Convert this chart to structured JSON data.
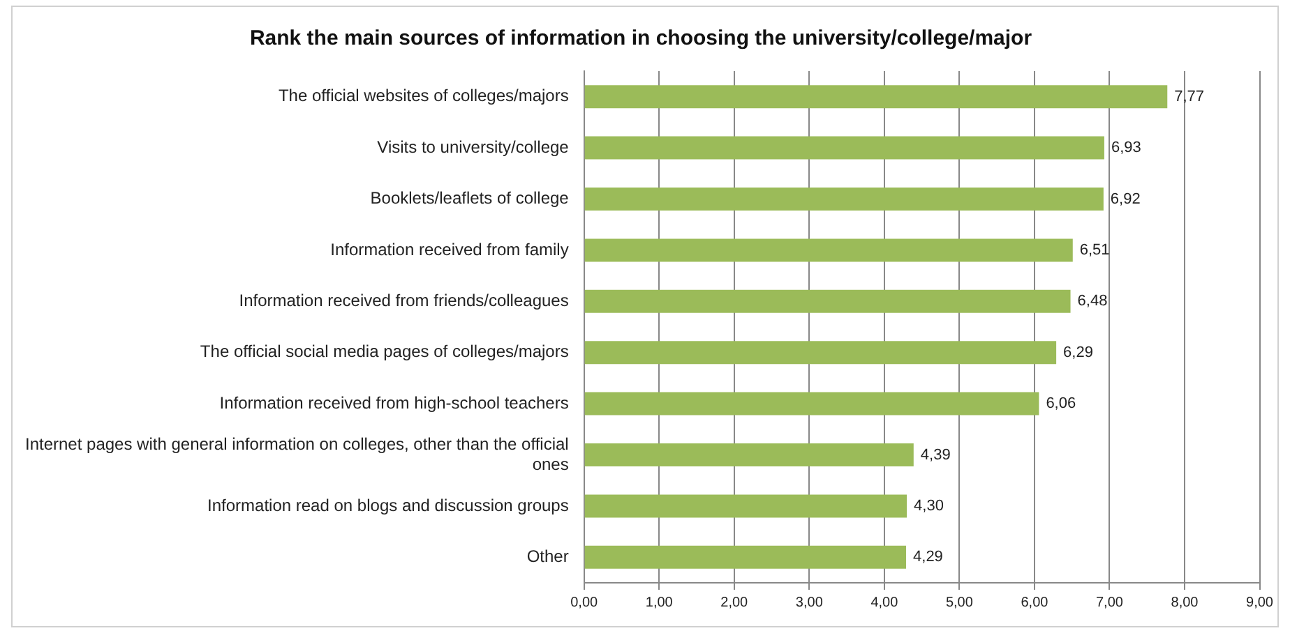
{
  "chart_data": {
    "type": "bar",
    "orientation": "horizontal",
    "title": "Rank the main sources of information in choosing the university/college/major",
    "categories": [
      "The official websites of colleges/majors",
      "Visits to university/college",
      "Booklets/leaflets of college",
      "Information received from family",
      "Information received from friends/colleagues",
      "The official social media pages of colleges/majors",
      "Information received from high-school teachers",
      "Internet pages with general information on colleges, other than the official ones",
      "Information read on blogs and discussion groups",
      "Other"
    ],
    "values": [
      7.77,
      6.93,
      6.92,
      6.51,
      6.48,
      6.29,
      6.06,
      4.39,
      4.3,
      4.29
    ],
    "value_labels": [
      "7,77",
      "6,93",
      "6,92",
      "6,51",
      "6,48",
      "6,29",
      "6,06",
      "4,39",
      "4,30",
      "4,29"
    ],
    "color": "#9bbb59",
    "xlim": [
      0,
      9
    ],
    "xticks": [
      {
        "value": 0,
        "label": "0,00"
      },
      {
        "value": 1,
        "label": "1,00"
      },
      {
        "value": 2,
        "label": "2,00"
      },
      {
        "value": 3,
        "label": "3,00"
      },
      {
        "value": 4,
        "label": "4,00"
      },
      {
        "value": 5,
        "label": "5,00"
      },
      {
        "value": 6,
        "label": "6,00"
      },
      {
        "value": 7,
        "label": "7,00"
      },
      {
        "value": 8,
        "label": "8,00"
      },
      {
        "value": 9,
        "label": "9,00"
      }
    ],
    "grid": "x",
    "legend": false
  }
}
